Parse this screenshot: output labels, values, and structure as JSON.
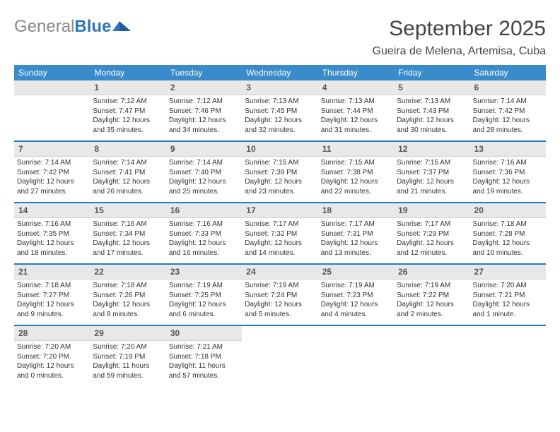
{
  "logo": {
    "part1": "General",
    "part2": "Blue"
  },
  "title": "September 2025",
  "location": "Gueira de Melena, Artemisa, Cuba",
  "colors": {
    "header_bg": "#3a8bc9",
    "header_text": "#ffffff",
    "daynum_bg": "#e8e8e8",
    "week_sep": "#2e77b8",
    "logo_gray": "#888888",
    "logo_blue": "#2e77b8"
  },
  "weekdays": [
    "Sunday",
    "Monday",
    "Tuesday",
    "Wednesday",
    "Thursday",
    "Friday",
    "Saturday"
  ],
  "weeks": [
    [
      null,
      {
        "n": "1",
        "sr": "Sunrise: 7:12 AM",
        "ss": "Sunset: 7:47 PM",
        "d1": "Daylight: 12 hours",
        "d2": "and 35 minutes."
      },
      {
        "n": "2",
        "sr": "Sunrise: 7:12 AM",
        "ss": "Sunset: 7:46 PM",
        "d1": "Daylight: 12 hours",
        "d2": "and 34 minutes."
      },
      {
        "n": "3",
        "sr": "Sunrise: 7:13 AM",
        "ss": "Sunset: 7:45 PM",
        "d1": "Daylight: 12 hours",
        "d2": "and 32 minutes."
      },
      {
        "n": "4",
        "sr": "Sunrise: 7:13 AM",
        "ss": "Sunset: 7:44 PM",
        "d1": "Daylight: 12 hours",
        "d2": "and 31 minutes."
      },
      {
        "n": "5",
        "sr": "Sunrise: 7:13 AM",
        "ss": "Sunset: 7:43 PM",
        "d1": "Daylight: 12 hours",
        "d2": "and 30 minutes."
      },
      {
        "n": "6",
        "sr": "Sunrise: 7:14 AM",
        "ss": "Sunset: 7:42 PM",
        "d1": "Daylight: 12 hours",
        "d2": "and 28 minutes."
      }
    ],
    [
      {
        "n": "7",
        "sr": "Sunrise: 7:14 AM",
        "ss": "Sunset: 7:42 PM",
        "d1": "Daylight: 12 hours",
        "d2": "and 27 minutes."
      },
      {
        "n": "8",
        "sr": "Sunrise: 7:14 AM",
        "ss": "Sunset: 7:41 PM",
        "d1": "Daylight: 12 hours",
        "d2": "and 26 minutes."
      },
      {
        "n": "9",
        "sr": "Sunrise: 7:14 AM",
        "ss": "Sunset: 7:40 PM",
        "d1": "Daylight: 12 hours",
        "d2": "and 25 minutes."
      },
      {
        "n": "10",
        "sr": "Sunrise: 7:15 AM",
        "ss": "Sunset: 7:39 PM",
        "d1": "Daylight: 12 hours",
        "d2": "and 23 minutes."
      },
      {
        "n": "11",
        "sr": "Sunrise: 7:15 AM",
        "ss": "Sunset: 7:38 PM",
        "d1": "Daylight: 12 hours",
        "d2": "and 22 minutes."
      },
      {
        "n": "12",
        "sr": "Sunrise: 7:15 AM",
        "ss": "Sunset: 7:37 PM",
        "d1": "Daylight: 12 hours",
        "d2": "and 21 minutes."
      },
      {
        "n": "13",
        "sr": "Sunrise: 7:16 AM",
        "ss": "Sunset: 7:36 PM",
        "d1": "Daylight: 12 hours",
        "d2": "and 19 minutes."
      }
    ],
    [
      {
        "n": "14",
        "sr": "Sunrise: 7:16 AM",
        "ss": "Sunset: 7:35 PM",
        "d1": "Daylight: 12 hours",
        "d2": "and 18 minutes."
      },
      {
        "n": "15",
        "sr": "Sunrise: 7:16 AM",
        "ss": "Sunset: 7:34 PM",
        "d1": "Daylight: 12 hours",
        "d2": "and 17 minutes."
      },
      {
        "n": "16",
        "sr": "Sunrise: 7:16 AM",
        "ss": "Sunset: 7:33 PM",
        "d1": "Daylight: 12 hours",
        "d2": "and 16 minutes."
      },
      {
        "n": "17",
        "sr": "Sunrise: 7:17 AM",
        "ss": "Sunset: 7:32 PM",
        "d1": "Daylight: 12 hours",
        "d2": "and 14 minutes."
      },
      {
        "n": "18",
        "sr": "Sunrise: 7:17 AM",
        "ss": "Sunset: 7:31 PM",
        "d1": "Daylight: 12 hours",
        "d2": "and 13 minutes."
      },
      {
        "n": "19",
        "sr": "Sunrise: 7:17 AM",
        "ss": "Sunset: 7:29 PM",
        "d1": "Daylight: 12 hours",
        "d2": "and 12 minutes."
      },
      {
        "n": "20",
        "sr": "Sunrise: 7:18 AM",
        "ss": "Sunset: 7:28 PM",
        "d1": "Daylight: 12 hours",
        "d2": "and 10 minutes."
      }
    ],
    [
      {
        "n": "21",
        "sr": "Sunrise: 7:18 AM",
        "ss": "Sunset: 7:27 PM",
        "d1": "Daylight: 12 hours",
        "d2": "and 9 minutes."
      },
      {
        "n": "22",
        "sr": "Sunrise: 7:18 AM",
        "ss": "Sunset: 7:26 PM",
        "d1": "Daylight: 12 hours",
        "d2": "and 8 minutes."
      },
      {
        "n": "23",
        "sr": "Sunrise: 7:19 AM",
        "ss": "Sunset: 7:25 PM",
        "d1": "Daylight: 12 hours",
        "d2": "and 6 minutes."
      },
      {
        "n": "24",
        "sr": "Sunrise: 7:19 AM",
        "ss": "Sunset: 7:24 PM",
        "d1": "Daylight: 12 hours",
        "d2": "and 5 minutes."
      },
      {
        "n": "25",
        "sr": "Sunrise: 7:19 AM",
        "ss": "Sunset: 7:23 PM",
        "d1": "Daylight: 12 hours",
        "d2": "and 4 minutes."
      },
      {
        "n": "26",
        "sr": "Sunrise: 7:19 AM",
        "ss": "Sunset: 7:22 PM",
        "d1": "Daylight: 12 hours",
        "d2": "and 2 minutes."
      },
      {
        "n": "27",
        "sr": "Sunrise: 7:20 AM",
        "ss": "Sunset: 7:21 PM",
        "d1": "Daylight: 12 hours",
        "d2": "and 1 minute."
      }
    ],
    [
      {
        "n": "28",
        "sr": "Sunrise: 7:20 AM",
        "ss": "Sunset: 7:20 PM",
        "d1": "Daylight: 12 hours",
        "d2": "and 0 minutes."
      },
      {
        "n": "29",
        "sr": "Sunrise: 7:20 AM",
        "ss": "Sunset: 7:19 PM",
        "d1": "Daylight: 11 hours",
        "d2": "and 59 minutes."
      },
      {
        "n": "30",
        "sr": "Sunrise: 7:21 AM",
        "ss": "Sunset: 7:18 PM",
        "d1": "Daylight: 11 hours",
        "d2": "and 57 minutes."
      },
      null,
      null,
      null,
      null
    ]
  ]
}
